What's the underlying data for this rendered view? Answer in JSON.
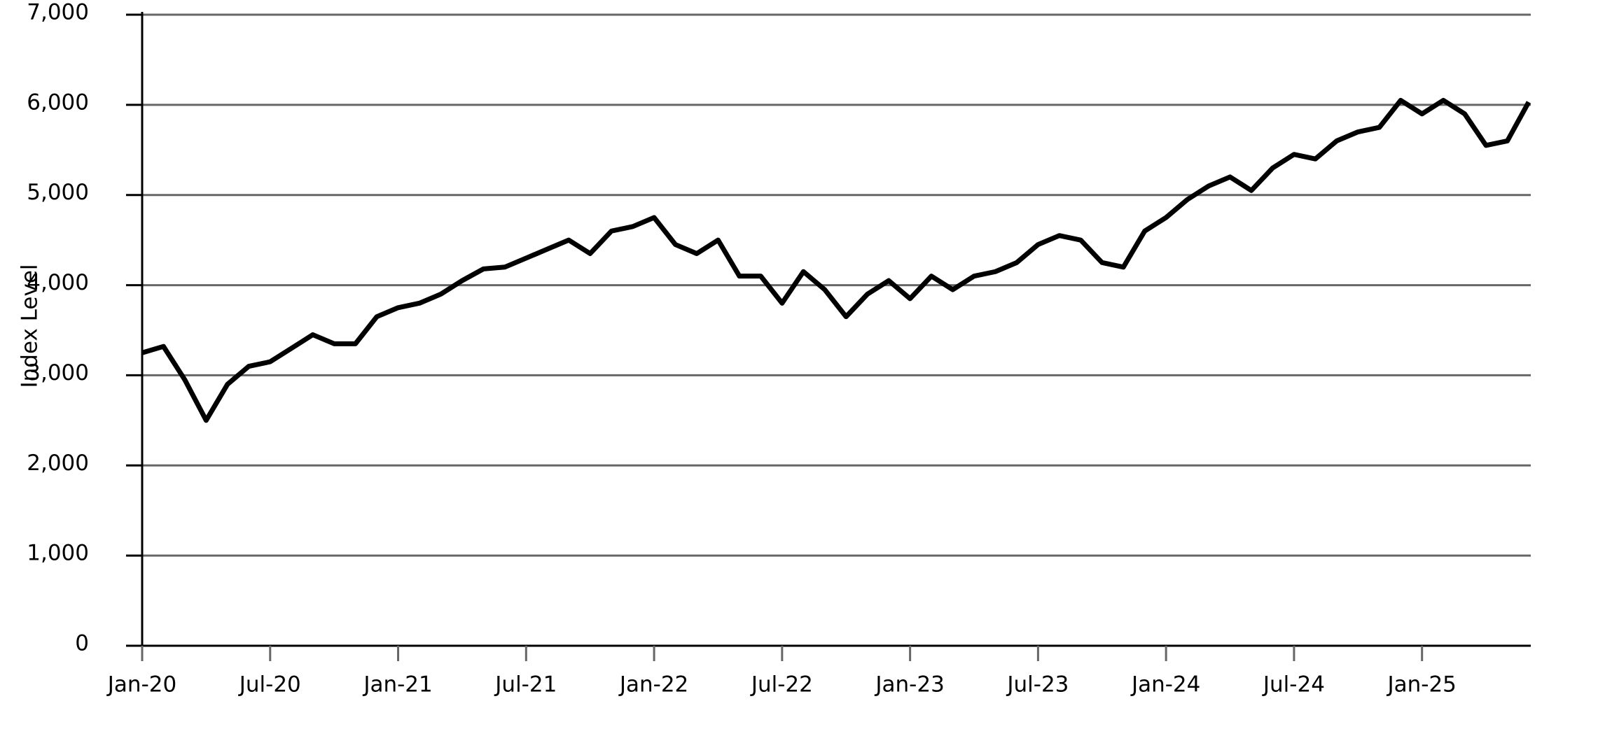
{
  "chart_data": {
    "type": "line",
    "y_label": "Index Level",
    "x": [
      "Jan-20",
      null,
      null,
      null,
      null,
      null,
      "Jul-20",
      null,
      null,
      null,
      null,
      null,
      "Jan-21",
      null,
      null,
      null,
      null,
      null,
      "Jul-21",
      null,
      null,
      null,
      null,
      null,
      "Jan-22",
      null,
      null,
      null,
      null,
      null,
      "Jul-22",
      null,
      null,
      null,
      null,
      null,
      "Jan-23",
      null,
      null,
      null,
      null,
      null,
      "Jul-23",
      null,
      null,
      null,
      null,
      null,
      "Jan-24",
      null,
      null,
      null,
      null,
      null,
      "Jul-24",
      null,
      null,
      null,
      null,
      null,
      "Jan-25",
      null,
      null,
      null,
      null,
      null
    ],
    "series": [
      {
        "color": "#000000",
        "values": [
          3250,
          3320,
          2950,
          2500,
          2900,
          3100,
          3150,
          3300,
          3450,
          3350,
          3350,
          3650,
          3750,
          3800,
          3900,
          4050,
          4180,
          4200,
          4300,
          4400,
          4500,
          4350,
          4600,
          4650,
          4750,
          4450,
          4350,
          4500,
          4100,
          4100,
          3800,
          4150,
          3950,
          3650,
          3900,
          4050,
          3850,
          4100,
          3950,
          4100,
          4150,
          4250,
          4450,
          4550,
          4500,
          4250,
          4200,
          4600,
          4750,
          4950,
          5100,
          5200,
          5050,
          5300,
          5450,
          5400,
          5600,
          5700,
          5750,
          6050,
          5900,
          6050,
          5900,
          5550,
          5600,
          6030
        ]
      }
    ],
    "ylim": [
      0,
      7000
    ],
    "yticks": [
      0,
      {
        "value": 1000,
        "label": "1,000"
      },
      {
        "value": 2000,
        "label": "2,000"
      },
      {
        "value": 3000,
        "label": "3,000"
      },
      {
        "value": 4000,
        "label": "4,000"
      },
      {
        "value": 5000,
        "label": "5,000"
      },
      {
        "value": 6000,
        "label": "6,000"
      },
      {
        "value": 7000,
        "label": "7,000"
      }
    ],
    "grid": true
  }
}
